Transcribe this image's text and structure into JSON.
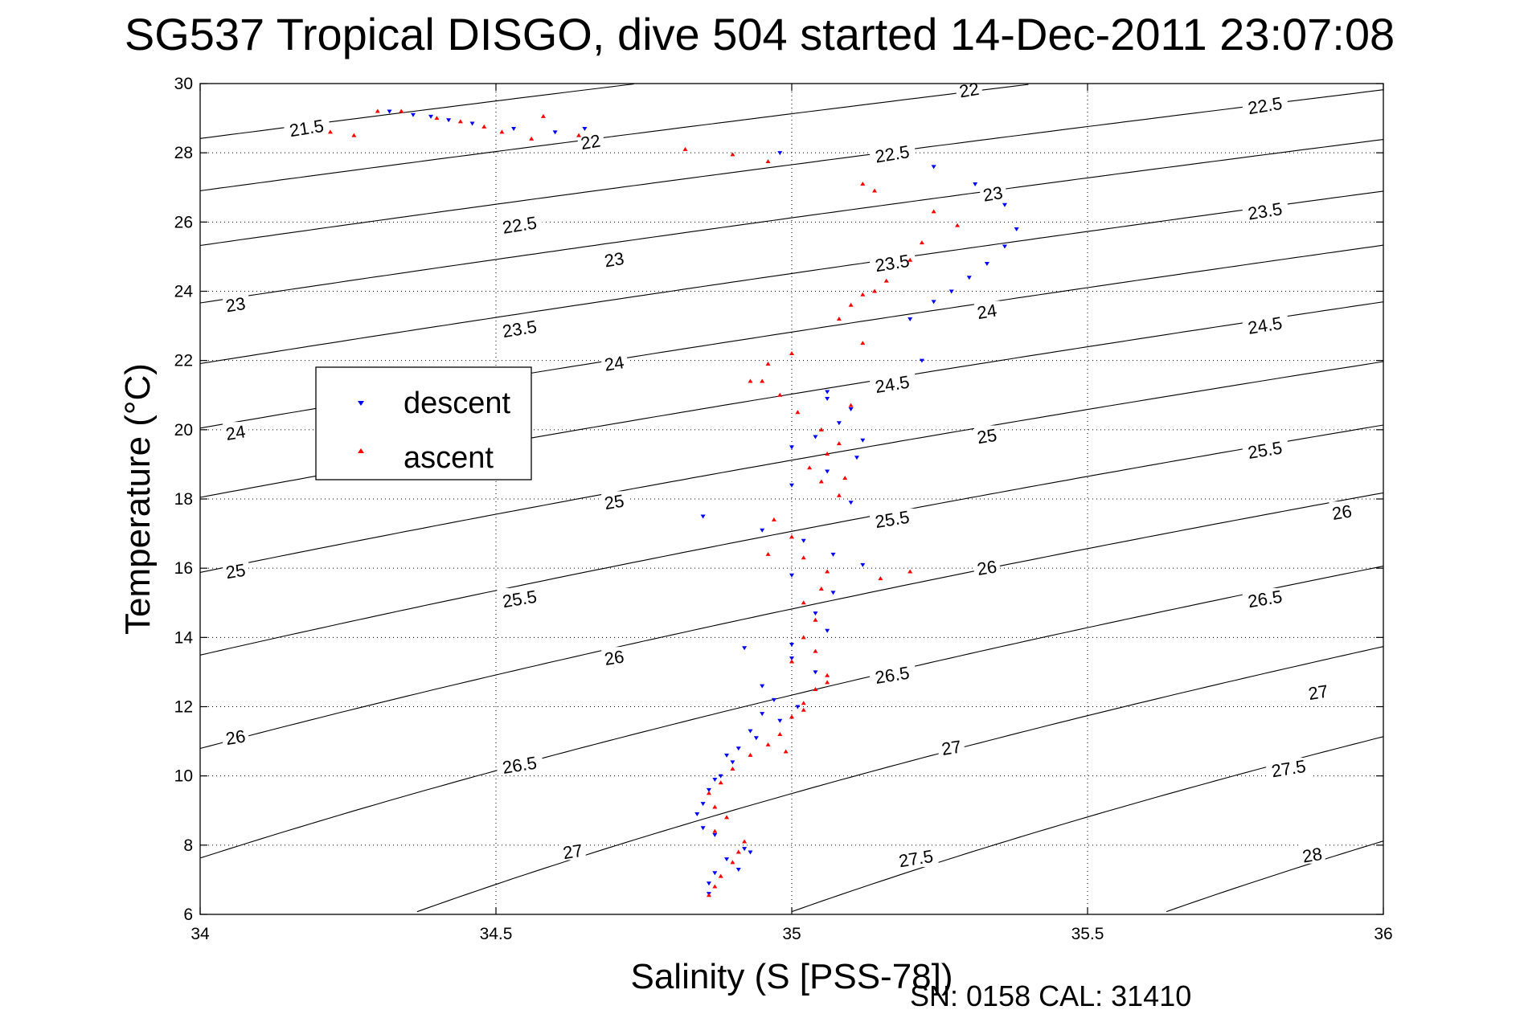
{
  "chart_data": {
    "type": "scatter",
    "title": "SG537 Tropical DISGO, dive 504 started 14-Dec-2011 23:07:08",
    "xlabel": "Salinity (S [PSS-78])",
    "ylabel": "Temperature (°C)",
    "xlim": [
      34,
      36
    ],
    "ylim": [
      6,
      30
    ],
    "xticks": [
      34,
      34.5,
      35,
      35.5,
      36
    ],
    "yticks": [
      6,
      8,
      10,
      12,
      14,
      16,
      18,
      20,
      22,
      24,
      26,
      28,
      30
    ],
    "xtick_labels": [
      "34",
      "34.5",
      "35",
      "35.5",
      "36"
    ],
    "ytick_labels": [
      "6",
      "8",
      "10",
      "12",
      "14",
      "16",
      "18",
      "20",
      "22",
      "24",
      "26",
      "28",
      "30"
    ],
    "grid": true,
    "legend_position": "upper-left",
    "footer": "SN: 0158  CAL: 31410",
    "contours": {
      "quantity": "sigma-theta",
      "levels": [
        21.5,
        22,
        22.5,
        23,
        23.5,
        24,
        24.5,
        25,
        25.5,
        26,
        26.5,
        27,
        27.5,
        28
      ],
      "labels": [
        {
          "text": "21.5",
          "s": 34.18,
          "t": 28.7
        },
        {
          "text": "22",
          "s": 34.66,
          "t": 28.3
        },
        {
          "text": "22.5",
          "s": 34.54,
          "t": 25.9
        },
        {
          "text": "23",
          "s": 34.06,
          "t": 23.6
        },
        {
          "text": "22",
          "s": 35.3,
          "t": 29.8
        },
        {
          "text": "22.5",
          "s": 35.17,
          "t": 27.95
        },
        {
          "text": "23",
          "s": 34.7,
          "t": 24.9
        },
        {
          "text": "24",
          "s": 34.06,
          "t": 19.9
        },
        {
          "text": "23.5",
          "s": 34.54,
          "t": 22.9
        },
        {
          "text": "23",
          "s": 35.34,
          "t": 26.8
        },
        {
          "text": "22.5",
          "s": 35.8,
          "t": 29.35
        },
        {
          "text": "23.5",
          "s": 35.17,
          "t": 24.8
        },
        {
          "text": "24",
          "s": 34.7,
          "t": 21.9
        },
        {
          "text": "25",
          "s": 34.06,
          "t": 15.9
        },
        {
          "text": "24",
          "s": 35.33,
          "t": 23.4
        },
        {
          "text": "23.5",
          "s": 35.8,
          "t": 26.3
        },
        {
          "text": "24.5",
          "s": 35.17,
          "t": 21.3
        },
        {
          "text": "25",
          "s": 34.7,
          "t": 17.9
        },
        {
          "text": "26",
          "s": 34.06,
          "t": 11.1
        },
        {
          "text": "25.5",
          "s": 34.54,
          "t": 15.1
        },
        {
          "text": "25",
          "s": 35.33,
          "t": 19.8
        },
        {
          "text": "24.5",
          "s": 35.8,
          "t": 23.0
        },
        {
          "text": "25.5",
          "s": 35.17,
          "t": 17.4
        },
        {
          "text": "26",
          "s": 34.7,
          "t": 13.4
        },
        {
          "text": "26.5",
          "s": 34.54,
          "t": 10.3
        },
        {
          "text": "26",
          "s": 35.33,
          "t": 16.0
        },
        {
          "text": "25.5",
          "s": 35.8,
          "t": 19.4
        },
        {
          "text": "27",
          "s": 34.63,
          "t": 7.8
        },
        {
          "text": "26.5",
          "s": 35.17,
          "t": 12.9
        },
        {
          "text": "26",
          "s": 35.93,
          "t": 17.6
        },
        {
          "text": "26.5",
          "s": 35.8,
          "t": 15.1
        },
        {
          "text": "27",
          "s": 35.27,
          "t": 10.8
        },
        {
          "text": "27.5",
          "s": 35.21,
          "t": 7.6
        },
        {
          "text": "27",
          "s": 35.89,
          "t": 12.4
        },
        {
          "text": "27.5",
          "s": 35.84,
          "t": 10.2
        },
        {
          "text": "28",
          "s": 35.88,
          "t": 7.7
        }
      ]
    },
    "series": [
      {
        "name": "descent",
        "color": "#0000ff",
        "marker": "triangle-down",
        "points": [
          [
            34.32,
            29.2
          ],
          [
            34.36,
            29.1
          ],
          [
            34.39,
            29.05
          ],
          [
            34.42,
            28.95
          ],
          [
            34.46,
            28.85
          ],
          [
            34.53,
            28.7
          ],
          [
            34.6,
            28.6
          ],
          [
            34.65,
            28.7
          ],
          [
            34.98,
            28.0
          ],
          [
            35.24,
            27.6
          ],
          [
            35.31,
            27.1
          ],
          [
            35.36,
            26.5
          ],
          [
            35.38,
            25.8
          ],
          [
            35.36,
            25.3
          ],
          [
            35.33,
            24.8
          ],
          [
            35.3,
            24.4
          ],
          [
            35.27,
            24.0
          ],
          [
            35.24,
            23.7
          ],
          [
            35.2,
            23.2
          ],
          [
            35.22,
            22.0
          ],
          [
            35.06,
            21.1
          ],
          [
            35.1,
            20.6
          ],
          [
            35.08,
            20.2
          ],
          [
            35.04,
            19.8
          ],
          [
            35.0,
            19.5
          ],
          [
            35.11,
            19.2
          ],
          [
            35.06,
            18.8
          ],
          [
            35.0,
            18.4
          ],
          [
            35.1,
            17.9
          ],
          [
            34.85,
            17.5
          ],
          [
            34.95,
            17.1
          ],
          [
            35.02,
            16.8
          ],
          [
            35.07,
            16.4
          ],
          [
            35.12,
            16.1
          ],
          [
            35.0,
            15.8
          ],
          [
            35.07,
            15.3
          ],
          [
            35.04,
            14.7
          ],
          [
            35.06,
            14.2
          ],
          [
            34.92,
            13.7
          ],
          [
            35.0,
            13.4
          ],
          [
            35.04,
            13.0
          ],
          [
            34.95,
            12.6
          ],
          [
            34.97,
            12.2
          ],
          [
            34.95,
            11.8
          ],
          [
            34.93,
            11.3
          ],
          [
            34.91,
            10.8
          ],
          [
            34.9,
            10.4
          ],
          [
            34.88,
            10.0
          ],
          [
            34.86,
            9.6
          ],
          [
            34.85,
            9.2
          ],
          [
            34.84,
            8.9
          ],
          [
            34.85,
            8.5
          ],
          [
            34.87,
            8.3
          ],
          [
            34.92,
            7.9
          ],
          [
            34.89,
            7.6
          ],
          [
            34.87,
            7.2
          ],
          [
            34.86,
            6.9
          ],
          [
            34.86,
            6.6
          ],
          [
            34.91,
            7.3
          ],
          [
            34.93,
            7.8
          ],
          [
            34.98,
            11.6
          ],
          [
            35.01,
            12.0
          ],
          [
            34.89,
            10.6
          ],
          [
            34.94,
            11.1
          ],
          [
            35.06,
            20.9
          ],
          [
            35.12,
            19.7
          ],
          [
            34.87,
            9.9
          ],
          [
            35.0,
            13.8
          ]
        ]
      },
      {
        "name": "ascent",
        "color": "#ff0000",
        "marker": "triangle-up",
        "points": [
          [
            34.22,
            28.6
          ],
          [
            34.26,
            28.5
          ],
          [
            34.3,
            29.2
          ],
          [
            34.34,
            29.2
          ],
          [
            34.4,
            29.0
          ],
          [
            34.44,
            28.9
          ],
          [
            34.48,
            28.75
          ],
          [
            34.51,
            28.6
          ],
          [
            34.56,
            28.4
          ],
          [
            34.58,
            29.05
          ],
          [
            34.64,
            28.5
          ],
          [
            34.82,
            28.1
          ],
          [
            34.9,
            27.95
          ],
          [
            34.96,
            27.75
          ],
          [
            35.12,
            27.1
          ],
          [
            35.14,
            26.9
          ],
          [
            35.24,
            26.3
          ],
          [
            35.28,
            25.9
          ],
          [
            35.22,
            25.4
          ],
          [
            35.2,
            24.9
          ],
          [
            35.16,
            24.3
          ],
          [
            35.12,
            23.9
          ],
          [
            35.1,
            23.6
          ],
          [
            35.08,
            23.2
          ],
          [
            35.12,
            22.5
          ],
          [
            35.0,
            22.2
          ],
          [
            34.96,
            21.9
          ],
          [
            34.93,
            21.4
          ],
          [
            34.98,
            21.0
          ],
          [
            35.01,
            20.5
          ],
          [
            35.05,
            20.0
          ],
          [
            35.08,
            19.6
          ],
          [
            35.06,
            19.3
          ],
          [
            35.03,
            18.9
          ],
          [
            35.05,
            18.5
          ],
          [
            35.08,
            18.1
          ],
          [
            34.97,
            17.4
          ],
          [
            35.0,
            16.9
          ],
          [
            34.96,
            16.4
          ],
          [
            35.02,
            16.3
          ],
          [
            35.06,
            15.9
          ],
          [
            35.15,
            15.7
          ],
          [
            35.2,
            15.9
          ],
          [
            35.05,
            15.4
          ],
          [
            35.02,
            15.0
          ],
          [
            35.04,
            14.5
          ],
          [
            35.02,
            14.0
          ],
          [
            35.04,
            13.6
          ],
          [
            35.0,
            13.3
          ],
          [
            35.06,
            12.9
          ],
          [
            35.04,
            12.5
          ],
          [
            35.02,
            12.1
          ],
          [
            35.0,
            11.7
          ],
          [
            34.98,
            11.2
          ],
          [
            34.96,
            10.9
          ],
          [
            34.93,
            10.6
          ],
          [
            34.9,
            10.2
          ],
          [
            34.88,
            9.8
          ],
          [
            34.86,
            9.5
          ],
          [
            34.87,
            9.1
          ],
          [
            34.89,
            8.8
          ],
          [
            34.87,
            8.4
          ],
          [
            34.92,
            8.1
          ],
          [
            34.91,
            7.8
          ],
          [
            34.9,
            7.5
          ],
          [
            34.88,
            7.1
          ],
          [
            34.87,
            6.8
          ],
          [
            34.86,
            6.55
          ],
          [
            35.06,
            12.7
          ],
          [
            35.02,
            11.9
          ],
          [
            34.99,
            10.7
          ],
          [
            35.09,
            18.6
          ],
          [
            35.1,
            20.7
          ],
          [
            34.95,
            21.4
          ],
          [
            35.14,
            24.0
          ]
        ]
      }
    ]
  },
  "legend": {
    "items": [
      {
        "label": "descent",
        "color": "#0000ff"
      },
      {
        "label": "ascent",
        "color": "#ff0000"
      }
    ]
  }
}
